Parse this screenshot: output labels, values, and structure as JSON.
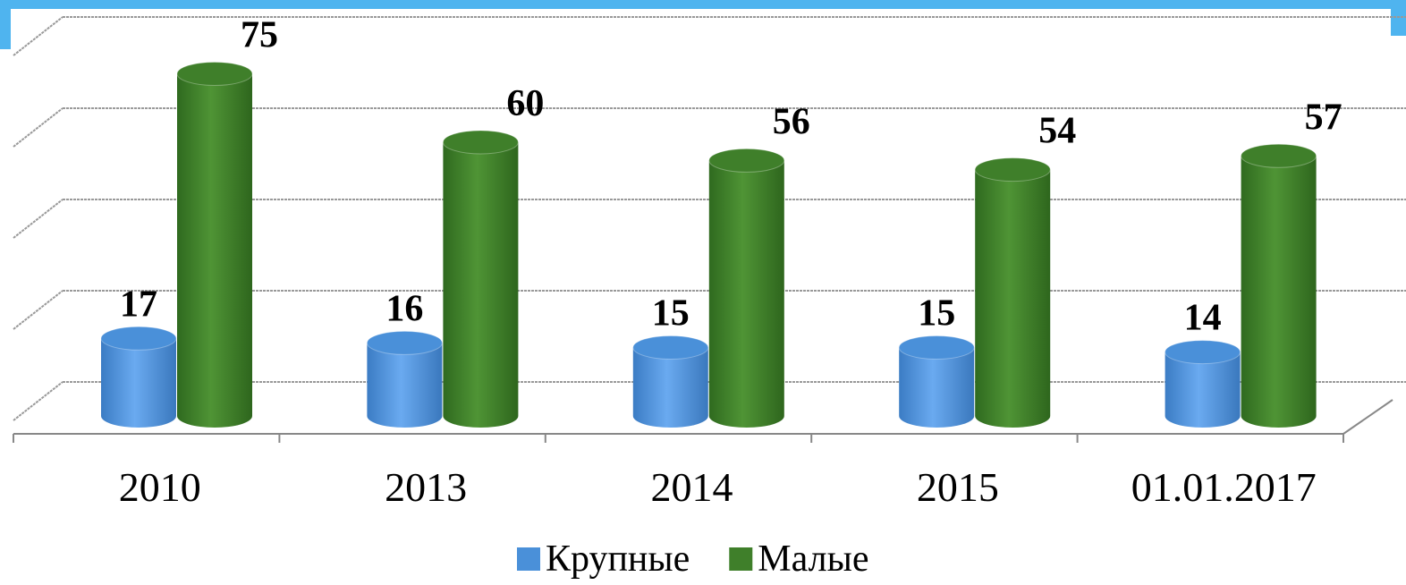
{
  "chart_data": {
    "type": "cylinder",
    "categories": [
      "2010",
      "2013",
      "2014",
      "2015",
      "01.01.2017"
    ],
    "series": [
      {
        "name": "Крупные",
        "color": "#4a90d9",
        "values": [
          17,
          16,
          15,
          15,
          14
        ]
      },
      {
        "name": "Малые",
        "color": "#3f7f2a",
        "values": [
          75,
          60,
          56,
          54,
          57
        ]
      }
    ],
    "ylim": [
      0,
      80
    ],
    "yticks": [
      0,
      20,
      40,
      60,
      80
    ],
    "grid": true,
    "legend": "bottom"
  }
}
